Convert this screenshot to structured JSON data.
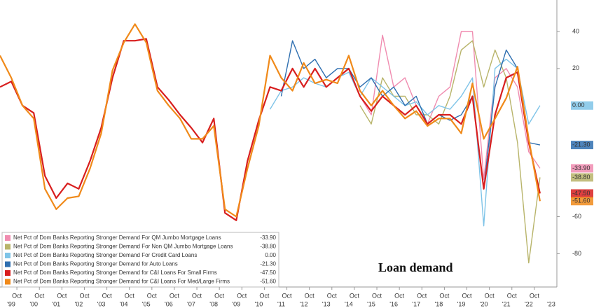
{
  "chart_data": {
    "type": "line",
    "title": "Loan demand",
    "x": [
      1999,
      1999.5,
      2000,
      2000.5,
      2001,
      2001.5,
      2002,
      2002.5,
      2003,
      2003.5,
      2004,
      2004.5,
      2005,
      2005.5,
      2006,
      2006.5,
      2007,
      2007.5,
      2008,
      2008.5,
      2009,
      2009.5,
      2010,
      2010.5,
      2011,
      2011.5,
      2012,
      2012.5,
      2013,
      2013.5,
      2014,
      2014.5,
      2015,
      2015.5,
      2016,
      2016.5,
      2017,
      2017.5,
      2018,
      2018.5,
      2019,
      2019.5,
      2020,
      2020.5,
      2021,
      2021.5,
      2022,
      2022.5,
      2023
    ],
    "xlim": [
      1999,
      2023.75
    ],
    "xticks": [
      {
        "value": 1999.75,
        "label": "Oct"
      },
      {
        "value": 2000.75,
        "label": "Oct"
      },
      {
        "value": 2001.75,
        "label": "Oct"
      },
      {
        "value": 2002.75,
        "label": "Oct"
      },
      {
        "value": 2003.75,
        "label": "Oct"
      },
      {
        "value": 2004.75,
        "label": "Oct"
      },
      {
        "value": 2005.75,
        "label": "Oct"
      },
      {
        "value": 2006.75,
        "label": "Oct"
      },
      {
        "value": 2007.75,
        "label": "Oct"
      },
      {
        "value": 2008.75,
        "label": "Oct"
      },
      {
        "value": 2009.75,
        "label": "Oct"
      },
      {
        "value": 2010.75,
        "label": "Oct"
      },
      {
        "value": 2011.75,
        "label": "Oct"
      },
      {
        "value": 2012.75,
        "label": "Oct"
      },
      {
        "value": 2013.75,
        "label": "Oct"
      },
      {
        "value": 2014.75,
        "label": "Oct"
      },
      {
        "value": 2015.75,
        "label": "Oct"
      },
      {
        "value": 2016.75,
        "label": "Oct"
      },
      {
        "value": 2017.75,
        "label": "Oct"
      },
      {
        "value": 2018.75,
        "label": "Oct"
      },
      {
        "value": 2019.75,
        "label": "Oct"
      },
      {
        "value": 2020.75,
        "label": "Oct"
      },
      {
        "value": 2021.75,
        "label": "Oct"
      },
      {
        "value": 2022.75,
        "label": "Oct"
      }
    ],
    "year_ticks": [
      {
        "value": 1999.5,
        "label": "'99"
      },
      {
        "value": 2000.5,
        "label": "'00"
      },
      {
        "value": 2001.5,
        "label": "'01"
      },
      {
        "value": 2002.5,
        "label": "'02"
      },
      {
        "value": 2003.5,
        "label": "'03"
      },
      {
        "value": 2004.5,
        "label": "'04"
      },
      {
        "value": 2005.5,
        "label": "'05"
      },
      {
        "value": 2006.5,
        "label": "'06"
      },
      {
        "value": 2007.5,
        "label": "'07"
      },
      {
        "value": 2008.5,
        "label": "'08"
      },
      {
        "value": 2009.5,
        "label": "'09"
      },
      {
        "value": 2010.5,
        "label": "'10"
      },
      {
        "value": 2011.5,
        "label": "'11"
      },
      {
        "value": 2012.5,
        "label": "'12"
      },
      {
        "value": 2013.5,
        "label": "'13"
      },
      {
        "value": 2014.5,
        "label": "'14"
      },
      {
        "value": 2015.5,
        "label": "'15"
      },
      {
        "value": 2016.5,
        "label": "'16"
      },
      {
        "value": 2017.5,
        "label": "'17"
      },
      {
        "value": 2018.5,
        "label": "'18"
      },
      {
        "value": 2019.5,
        "label": "'19"
      },
      {
        "value": 2020.5,
        "label": "'20"
      },
      {
        "value": 2021.5,
        "label": "'21"
      },
      {
        "value": 2022.5,
        "label": "'22"
      },
      {
        "value": 2023.5,
        "label": "'23"
      }
    ],
    "ylim": [
      -98,
      57
    ],
    "yticks": [
      -80,
      -60,
      20,
      40
    ],
    "series": [
      {
        "name": "Net Pct of Dom Banks Reporting Stronger Demand For QM Jumbo Mortgage Loans",
        "color": "#f08cb0",
        "latest": {
          "value": -33.9,
          "label": "-33.90"
        },
        "values": [
          null,
          null,
          null,
          null,
          null,
          null,
          null,
          null,
          null,
          null,
          null,
          null,
          null,
          null,
          null,
          null,
          null,
          null,
          null,
          null,
          null,
          null,
          null,
          null,
          null,
          null,
          null,
          null,
          null,
          null,
          null,
          null,
          5,
          -5,
          38,
          10,
          15,
          0,
          -10,
          5,
          10,
          40,
          40,
          -40,
          15,
          20,
          10,
          -25,
          -33.9
        ]
      },
      {
        "name": "Net Pct of Dom Banks Reporting Stronger Demand For Non QM Jumbo Mortgage Loans",
        "color": "#b8b46a",
        "latest": {
          "value": -38.8,
          "label": "-38.80"
        },
        "values": [
          null,
          null,
          null,
          null,
          null,
          null,
          null,
          null,
          null,
          null,
          null,
          null,
          null,
          null,
          null,
          null,
          null,
          null,
          null,
          null,
          null,
          null,
          null,
          null,
          null,
          null,
          null,
          null,
          null,
          null,
          null,
          null,
          0,
          -10,
          15,
          5,
          5,
          -5,
          -5,
          -10,
          5,
          30,
          35,
          10,
          30,
          15,
          -20,
          -85,
          -38.8
        ]
      },
      {
        "name": "Net Pct of Dom Banks Reporting Stronger Demand For Credit Card Loans",
        "color": "#7fc4e8",
        "latest": {
          "value": 0,
          "label": "0.00"
        },
        "values": [
          null,
          null,
          null,
          null,
          null,
          null,
          null,
          null,
          null,
          null,
          null,
          null,
          null,
          null,
          null,
          null,
          null,
          null,
          null,
          null,
          null,
          null,
          null,
          null,
          -2,
          8,
          10,
          15,
          12,
          10,
          15,
          18,
          5,
          15,
          10,
          5,
          0,
          2,
          -5,
          0,
          -2,
          5,
          15,
          -65,
          20,
          25,
          20,
          -10,
          0
        ]
      },
      {
        "name": "Net Pct of Dom Banks Reporting Stronger Demand for Auto Loans",
        "color": "#2f6fb0",
        "latest": {
          "value": -21.3,
          "label": "-21.30"
        },
        "values": [
          null,
          null,
          null,
          null,
          null,
          null,
          null,
          null,
          null,
          null,
          null,
          null,
          null,
          null,
          null,
          null,
          null,
          null,
          null,
          null,
          null,
          null,
          null,
          null,
          null,
          5,
          35,
          20,
          25,
          15,
          20,
          20,
          10,
          15,
          5,
          10,
          0,
          5,
          -10,
          -5,
          -8,
          -5,
          5,
          -45,
          10,
          30,
          20,
          -20,
          -21.3
        ]
      },
      {
        "name": "Net Pct of Dom Banks Reporting Stronger Demand for C&I Loans For Small Firms",
        "color": "#d81e1e",
        "latest": {
          "value": -47.5,
          "label": "-47.50"
        },
        "values": [
          10,
          13,
          0,
          -4,
          -38,
          -50,
          -42,
          -45,
          -30,
          -12,
          15,
          35,
          35,
          36,
          10,
          3,
          -5,
          -12,
          -20,
          -7,
          -58,
          -62,
          -30,
          -8,
          10,
          8,
          20,
          10,
          20,
          10,
          15,
          20,
          5,
          -3,
          5,
          0,
          -5,
          0,
          -10,
          -5,
          -5,
          -10,
          5,
          -45,
          -5,
          15,
          18,
          -20,
          -47.5
        ]
      },
      {
        "name": "Net Pct of Dom Banks Reporting Stronger Demand for C&I Loans For Med/Large Firms",
        "color": "#f08a1a",
        "latest": {
          "value": -51.6,
          "label": "-51.60"
        },
        "values": [
          27,
          15,
          0,
          -7,
          -45,
          -56,
          -50,
          -49,
          -34,
          -15,
          19,
          34,
          44,
          34,
          8,
          0,
          -7,
          -18,
          -18,
          -11,
          -56,
          -60,
          -34,
          -11,
          27,
          15,
          8,
          23,
          12,
          14,
          12,
          27,
          8,
          0,
          8,
          0,
          -7,
          -3,
          -11,
          -7,
          -7,
          -15,
          12,
          -18,
          -7,
          4,
          21,
          -18,
          -51.6
        ]
      }
    ]
  }
}
